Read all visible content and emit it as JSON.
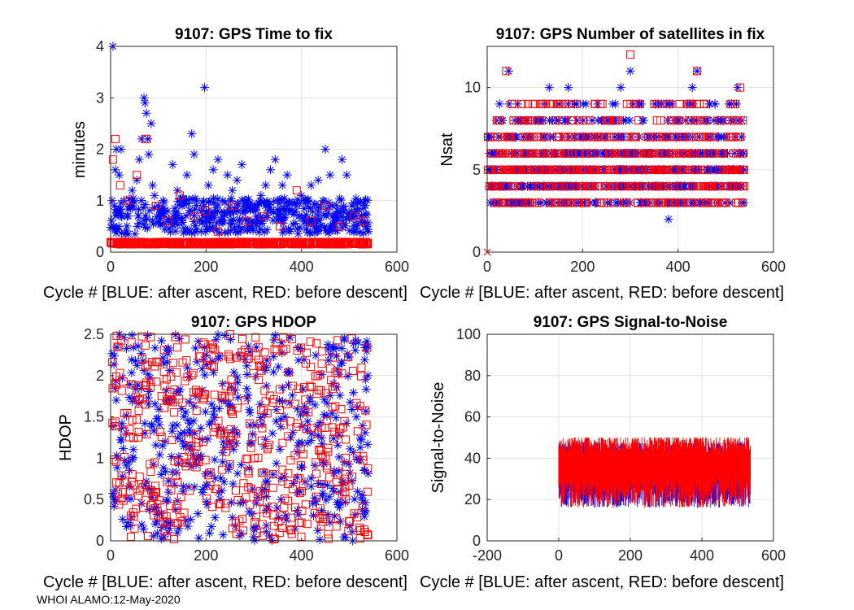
{
  "colors": {
    "blue": "#0000ff",
    "red": "#ff0000",
    "axis": "#262626",
    "grid": "#e3e3e3"
  },
  "footer": "WHOI ALAMO:12-May-2020",
  "legend_note": "Cycle #  [BLUE: after ascent, RED: before descent]",
  "chart_data": [
    {
      "id": "ttf",
      "type": "scatter",
      "title": "9107: GPS Time to fix",
      "xlabel": "Cycle #  [BLUE: after ascent, RED: before descent]",
      "ylabel": "minutes",
      "xlim": [
        0,
        600
      ],
      "ylim": [
        0,
        4
      ],
      "xticks": [
        0,
        200,
        400,
        600
      ],
      "yticks": [
        0,
        1,
        2,
        3,
        4
      ],
      "series": [
        {
          "name": "after ascent",
          "color": "#0000ff",
          "marker": "star",
          "points": [
            [
              5,
              4.0
            ],
            [
              3,
              1.0
            ],
            [
              8,
              0.9
            ],
            [
              10,
              1.6
            ],
            [
              12,
              2.0
            ],
            [
              15,
              0.8
            ],
            [
              18,
              1.5
            ],
            [
              22,
              2.0
            ],
            [
              28,
              1.0
            ],
            [
              35,
              0.7
            ],
            [
              40,
              0.9
            ],
            [
              45,
              1.2
            ],
            [
              55,
              1.4
            ],
            [
              60,
              1.8
            ],
            [
              65,
              2.2
            ],
            [
              70,
              3.0
            ],
            [
              72,
              2.9
            ],
            [
              75,
              2.7
            ],
            [
              78,
              2.2
            ],
            [
              80,
              1.9
            ],
            [
              85,
              2.5
            ],
            [
              88,
              1.3
            ],
            [
              92,
              1.1
            ],
            [
              100,
              0.9
            ],
            [
              110,
              1.0
            ],
            [
              120,
              0.8
            ],
            [
              130,
              1.7
            ],
            [
              140,
              1.2
            ],
            [
              150,
              0.9
            ],
            [
              160,
              1.5
            ],
            [
              170,
              2.3
            ],
            [
              175,
              1.9
            ],
            [
              180,
              1.0
            ],
            [
              190,
              0.8
            ],
            [
              197,
              3.2
            ],
            [
              205,
              1.3
            ],
            [
              215,
              1.6
            ],
            [
              225,
              1.8
            ],
            [
              235,
              1.0
            ],
            [
              245,
              1.5
            ],
            [
              255,
              1.2
            ],
            [
              265,
              1.4
            ],
            [
              275,
              1.7
            ],
            [
              285,
              0.9
            ],
            [
              295,
              0.6
            ],
            [
              305,
              0.7
            ],
            [
              315,
              1.1
            ],
            [
              325,
              1.3
            ],
            [
              335,
              1.6
            ],
            [
              345,
              1.8
            ],
            [
              350,
              1.0
            ],
            [
              360,
              1.3
            ],
            [
              370,
              1.5
            ],
            [
              380,
              0.8
            ],
            [
              390,
              0.9
            ],
            [
              400,
              1.1
            ],
            [
              410,
              0.6
            ],
            [
              420,
              1.3
            ],
            [
              435,
              1.4
            ],
            [
              445,
              1.0
            ],
            [
              450,
              2.0
            ],
            [
              460,
              1.5
            ],
            [
              465,
              0.7
            ],
            [
              475,
              0.8
            ],
            [
              485,
              1.8
            ],
            [
              495,
              1.5
            ],
            [
              505,
              0.9
            ],
            [
              515,
              0.7
            ],
            [
              525,
              0.6
            ],
            [
              535,
              0.5
            ],
            [
              540,
              0.4
            ]
          ],
          "band": {
            "x": [
              0,
              540
            ],
            "y": [
              0.35,
              1.05
            ],
            "count": 420,
            "seed": 11
          }
        },
        {
          "name": "before descent",
          "color": "#ff0000",
          "marker": "square",
          "points": [
            [
              5,
              1.8
            ],
            [
              10,
              2.2
            ],
            [
              20,
              1.3
            ],
            [
              35,
              1.0
            ],
            [
              55,
              1.5
            ],
            [
              75,
              2.2
            ],
            [
              95,
              0.9
            ],
            [
              120,
              0.6
            ],
            [
              145,
              1.1
            ],
            [
              175,
              0.7
            ],
            [
              200,
              0.8
            ],
            [
              225,
              0.4
            ],
            [
              255,
              0.9
            ],
            [
              285,
              0.6
            ],
            [
              320,
              0.7
            ],
            [
              355,
              0.5
            ],
            [
              390,
              1.2
            ],
            [
              420,
              0.6
            ],
            [
              450,
              0.9
            ],
            [
              480,
              0.5
            ],
            [
              510,
              0.7
            ],
            [
              530,
              0.6
            ]
          ],
          "band": {
            "x": [
              0,
              540
            ],
            "y": [
              0.15,
              0.2
            ],
            "count": 540,
            "seed": 23
          }
        }
      ]
    },
    {
      "id": "nsat",
      "type": "scatter",
      "title": "9107: GPS Number of satellites in fix",
      "xlabel": "Cycle #  [BLUE: after ascent, RED: before descent]",
      "ylabel": "Nsat",
      "xlim": [
        0,
        600
      ],
      "ylim": [
        0,
        12.5
      ],
      "xticks": [
        0,
        200,
        400,
        600
      ],
      "yticks": [
        0,
        5,
        10
      ],
      "levels": [
        3,
        4,
        5,
        6,
        7,
        8,
        9
      ],
      "series": [
        {
          "name": "after ascent",
          "color": "#0000ff",
          "marker": "star",
          "points": [
            [
              45,
              11
            ],
            [
              130,
              10
            ],
            [
              170,
              10
            ],
            [
              280,
              10
            ],
            [
              300,
              11
            ],
            [
              380,
              2
            ],
            [
              430,
              10
            ],
            [
              440,
              11
            ],
            [
              525,
              10
            ]
          ],
          "band": {
            "x": [
              0,
              540
            ],
            "count": 700,
            "seed": 31
          }
        },
        {
          "name": "before descent",
          "color": "#ff0000",
          "marker": "square",
          "points": [
            [
              40,
              11
            ],
            [
              300,
              12
            ],
            [
              440,
              11
            ],
            [
              530,
              10
            ],
            [
              100,
              9
            ],
            [
              155,
              9
            ],
            [
              320,
              9
            ],
            [
              420,
              9
            ],
            [
              520,
              9
            ]
          ],
          "cross": [
            0,
            0
          ],
          "band": {
            "x": [
              0,
              540
            ],
            "count": 700,
            "seed": 37
          }
        }
      ]
    },
    {
      "id": "hdop",
      "type": "scatter",
      "title": "9107: GPS HDOP",
      "xlabel": "Cycle #  [BLUE: after ascent, RED: before descent]",
      "ylabel": "HDOP",
      "xlim": [
        0,
        600
      ],
      "ylim": [
        0,
        2.5
      ],
      "xticks": [
        0,
        200,
        400,
        600
      ],
      "yticks": [
        0,
        0.5,
        1,
        1.5,
        2,
        2.5
      ],
      "series": [
        {
          "name": "after ascent",
          "color": "#0000ff",
          "marker": "star",
          "band": {
            "x": [
              0,
              540
            ],
            "y": [
              0,
              2.5
            ],
            "count": 520,
            "seed": 41
          }
        },
        {
          "name": "before descent",
          "color": "#ff0000",
          "marker": "square",
          "band": {
            "x": [
              0,
              540
            ],
            "y": [
              0,
              2.5
            ],
            "count": 480,
            "seed": 53
          }
        }
      ]
    },
    {
      "id": "snr",
      "type": "line",
      "title": "9107: GPS Signal-to-Noise",
      "xlabel": "Cycle #  [BLUE: after ascent, RED: before descent]",
      "ylabel": "Signal-to-Noise",
      "xlim": [
        -200,
        600
      ],
      "ylim": [
        0,
        100
      ],
      "xticks": [
        -200,
        0,
        200,
        400,
        600
      ],
      "yticks": [
        0,
        20,
        40,
        60,
        80,
        100
      ],
      "series": [
        {
          "name": "after ascent",
          "color": "#0000ff",
          "x": [
            0,
            535
          ],
          "center": 38,
          "spread": 22,
          "seed": 61
        },
        {
          "name": "before descent",
          "color": "#ff0000",
          "x": [
            0,
            535
          ],
          "center": 40,
          "spread": 24,
          "seed": 67
        }
      ]
    }
  ]
}
